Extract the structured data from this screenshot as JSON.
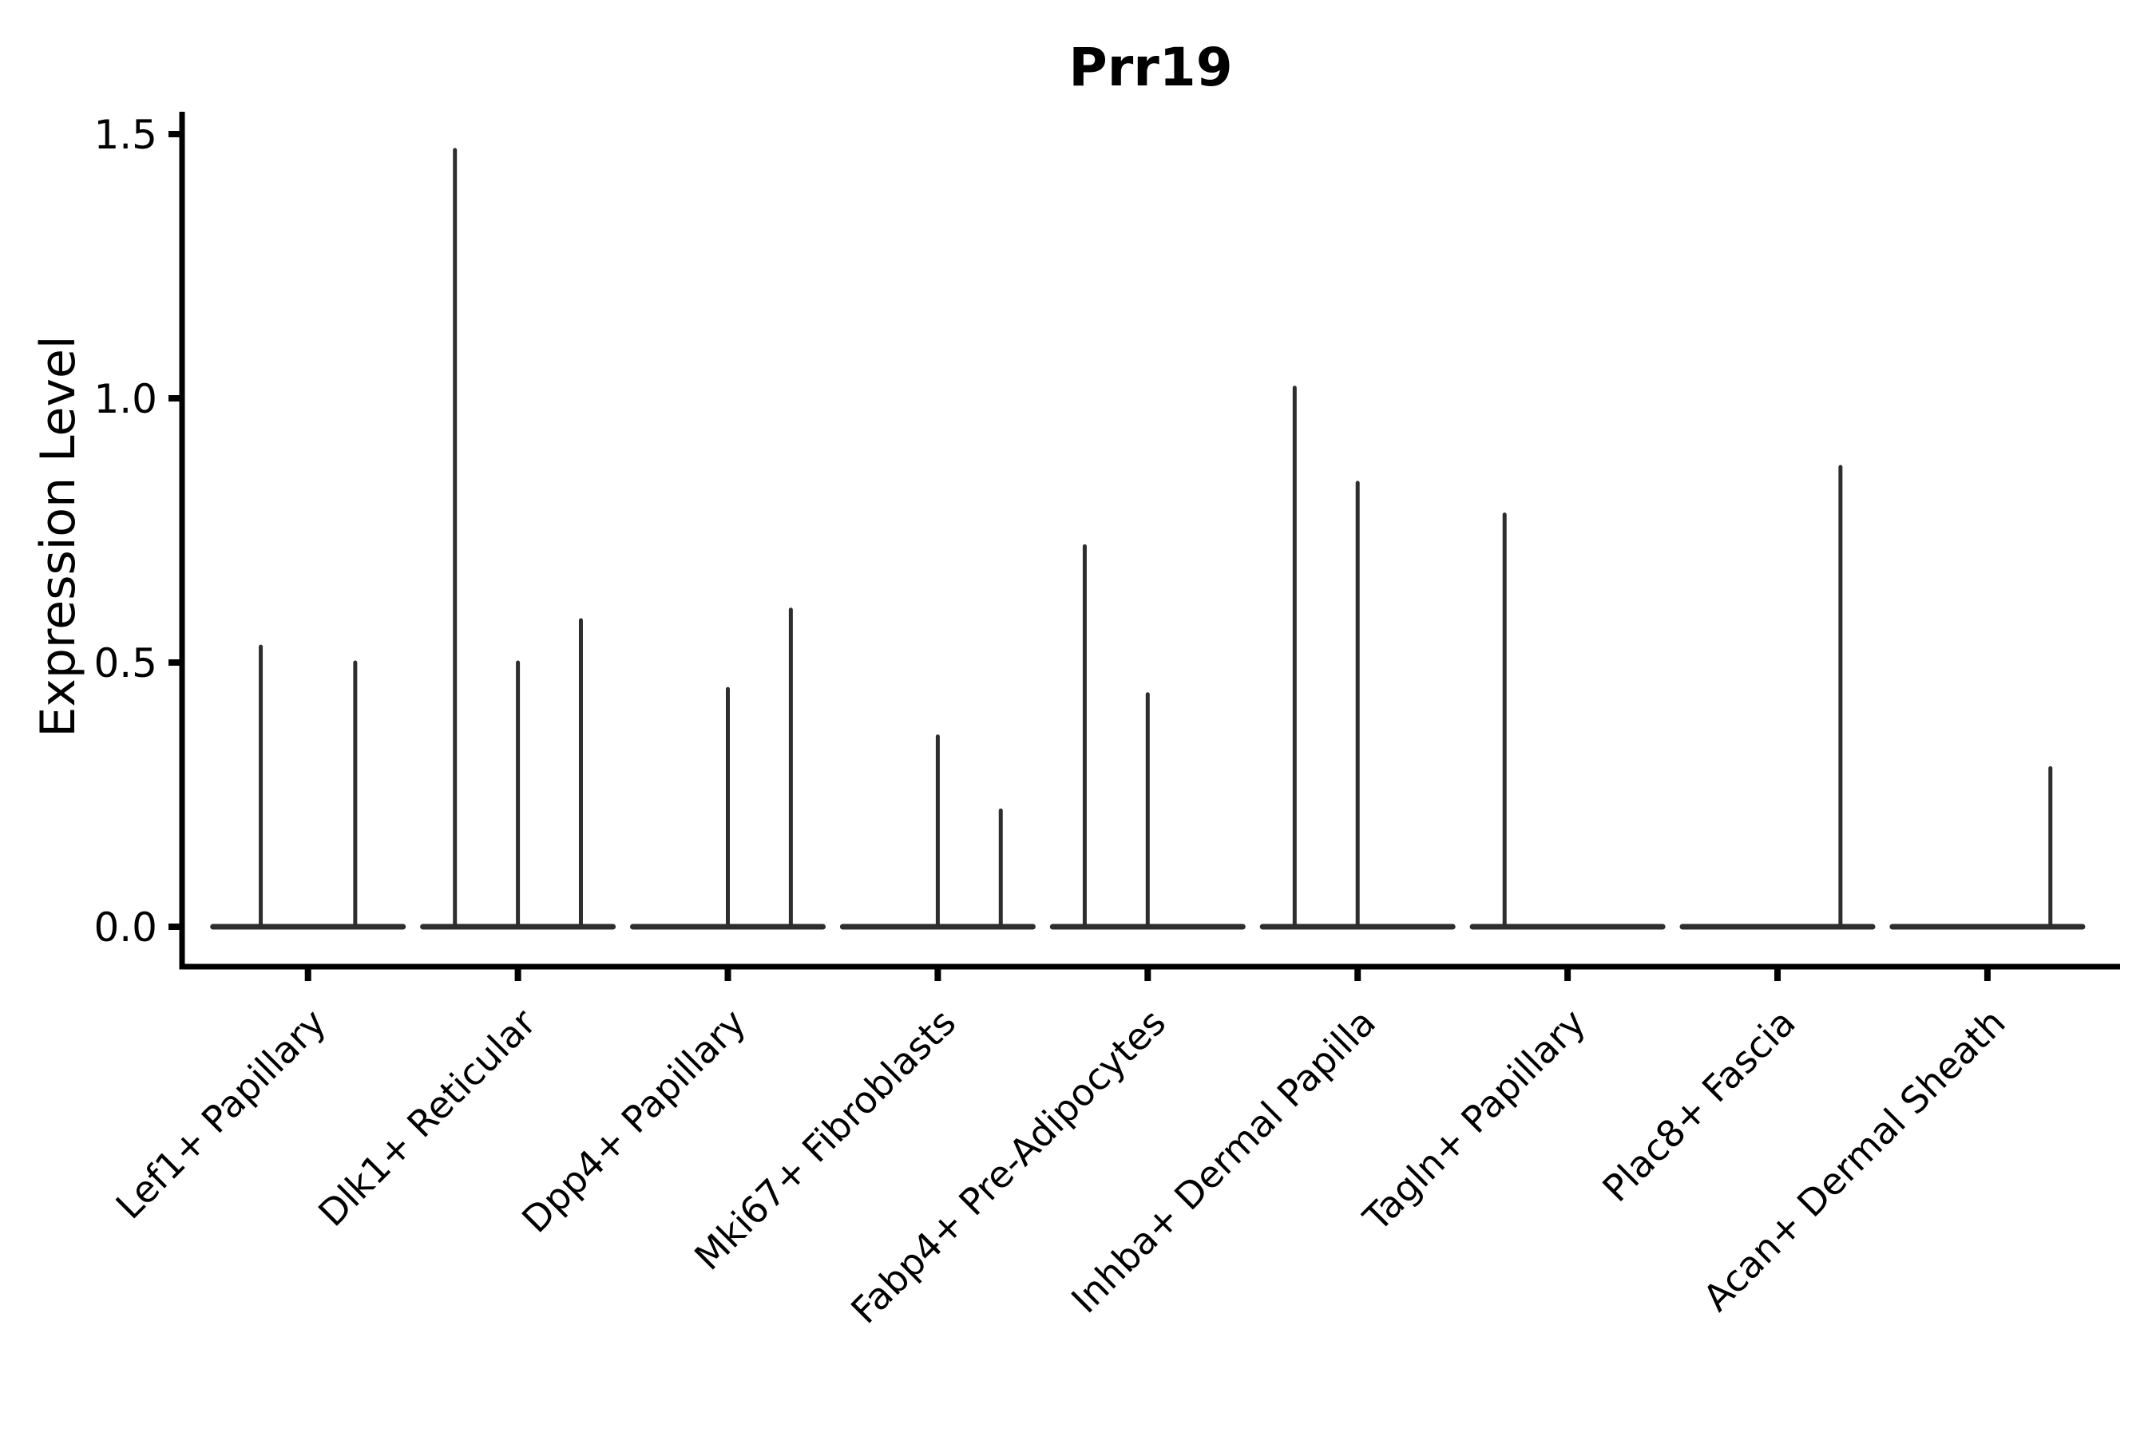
{
  "figure": {
    "background": "#ffffff"
  },
  "chart_data": {
    "type": "violin",
    "title": "Prr19",
    "ylabel": "Expression Level",
    "xlabel": "",
    "ylim": [
      -0.07,
      1.54
    ],
    "grid": false,
    "legend_position": "none",
    "yticks": [
      {
        "value": 0.0,
        "label": "0.0"
      },
      {
        "value": 0.5,
        "label": "0.5"
      },
      {
        "value": 1.0,
        "label": "1.0"
      },
      {
        "value": 1.5,
        "label": "1.5"
      }
    ],
    "categories": [
      {
        "label": "Lef1+ Papillary",
        "spikes": [
          {
            "offset": -0.225,
            "max": 0.53
          },
          {
            "offset": 0.225,
            "max": 0.5
          }
        ]
      },
      {
        "label": "Dlk1+ Reticular",
        "spikes": [
          {
            "offset": -0.3,
            "max": 1.47
          },
          {
            "offset": 0.0,
            "max": 0.5
          },
          {
            "offset": 0.3,
            "max": 0.58
          }
        ]
      },
      {
        "label": "Dpp4+ Papillary",
        "spikes": [
          {
            "offset": 0.0,
            "max": 0.45
          },
          {
            "offset": 0.3,
            "max": 0.6
          }
        ]
      },
      {
        "label": "Mki67+ Fibroblasts",
        "spikes": [
          {
            "offset": 0.0,
            "max": 0.36
          },
          {
            "offset": 0.3,
            "max": 0.22
          }
        ]
      },
      {
        "label": "Fabp4+ Pre-Adipocytes",
        "spikes": [
          {
            "offset": -0.3,
            "max": 0.72
          },
          {
            "offset": 0.0,
            "max": 0.44
          }
        ]
      },
      {
        "label": "Inhba+ Dermal Papilla",
        "spikes": [
          {
            "offset": -0.3,
            "max": 1.02
          },
          {
            "offset": 0.0,
            "max": 0.84
          }
        ]
      },
      {
        "label": "Tagln+ Papillary",
        "spikes": [
          {
            "offset": -0.3,
            "max": 0.78
          }
        ]
      },
      {
        "label": "Plac8+ Fascia",
        "spikes": [
          {
            "offset": 0.3,
            "max": 0.87
          }
        ]
      },
      {
        "label": "Acan+ Dermal Sheath",
        "spikes": [
          {
            "offset": 0.3,
            "max": 0.3
          }
        ]
      }
    ],
    "violin_baseline_value": 0.0,
    "violin_halfwidth": 0.455,
    "colors": {
      "violin_line": "#2e2e2e",
      "axis": "#000000",
      "text": "#000000",
      "background": "#ffffff"
    }
  }
}
